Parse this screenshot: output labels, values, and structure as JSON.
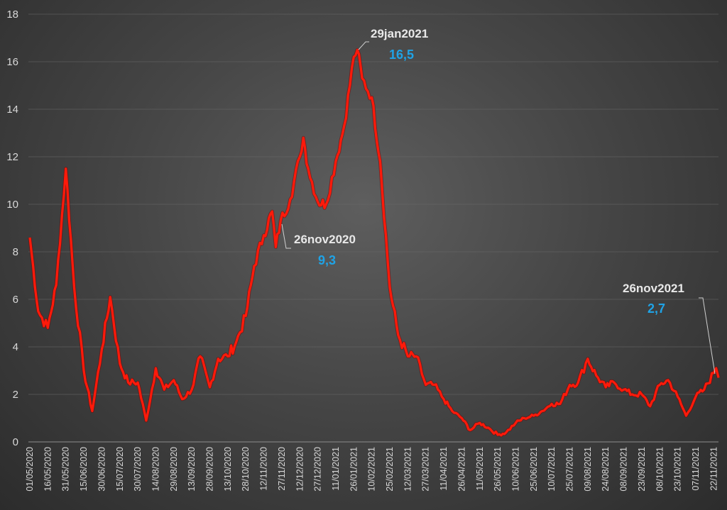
{
  "chart_data": {
    "type": "line",
    "title": "",
    "xlabel": "",
    "ylabel": "",
    "ylim": [
      0,
      18
    ],
    "yticks": [
      "0",
      "2",
      "4",
      "6",
      "8",
      "10",
      "12",
      "14",
      "16",
      "18"
    ],
    "grid": true,
    "legend": "none",
    "colors": {
      "line": "#ff1a0a",
      "annotation_value": "#1fa3e6",
      "annotation_date": "#e8e8e8",
      "grid": "#6a6a6a"
    },
    "xticks": [
      "01/05/2020",
      "16/05/2020",
      "31/05/2020",
      "15/06/2020",
      "30/06/2020",
      "15/07/2020",
      "30/07/2020",
      "14/08/2020",
      "29/08/2020",
      "13/09/2020",
      "28/09/2020",
      "13/10/2020",
      "28/10/2020",
      "12/11/2020",
      "27/11/2020",
      "12/12/2020",
      "27/12/2020",
      "11/01/2021",
      "26/01/2021",
      "10/02/2021",
      "25/02/2021",
      "12/03/2021",
      "27/03/2021",
      "11/04/2021",
      "26/04/2021",
      "11/05/2021",
      "26/05/2021",
      "10/06/2021",
      "25/06/2021",
      "10/07/2021",
      "25/07/2021",
      "09/08/2021",
      "24/08/2021",
      "08/09/2021",
      "23/09/2021",
      "08/10/2021",
      "23/10/2021",
      "07/11/2021",
      "22/11/2021"
    ],
    "series": [
      {
        "points": [
          [
            "01/05/2020",
            8.6
          ],
          [
            "08/05/2020",
            5.5
          ],
          [
            "16/05/2020",
            4.8
          ],
          [
            "23/05/2020",
            6.6
          ],
          [
            "31/05/2020",
            11.5
          ],
          [
            "07/06/2020",
            6.5
          ],
          [
            "15/06/2020",
            3.0
          ],
          [
            "22/06/2020",
            1.3
          ],
          [
            "30/06/2020",
            3.9
          ],
          [
            "07/07/2020",
            6.1
          ],
          [
            "15/07/2020",
            3.3
          ],
          [
            "22/07/2020",
            2.5
          ],
          [
            "30/07/2020",
            2.5
          ],
          [
            "06/08/2020",
            0.9
          ],
          [
            "14/08/2020",
            3.1
          ],
          [
            "21/08/2020",
            2.2
          ],
          [
            "29/08/2020",
            2.6
          ],
          [
            "05/09/2020",
            1.8
          ],
          [
            "13/09/2020",
            2.2
          ],
          [
            "20/09/2020",
            3.6
          ],
          [
            "28/09/2020",
            2.3
          ],
          [
            "05/10/2020",
            3.5
          ],
          [
            "13/10/2020",
            3.6
          ],
          [
            "20/10/2020",
            4.2
          ],
          [
            "28/10/2020",
            5.3
          ],
          [
            "04/11/2020",
            7.4
          ],
          [
            "12/11/2020",
            8.7
          ],
          [
            "19/11/2020",
            9.7
          ],
          [
            "22/11/2020",
            8.2
          ],
          [
            "26/11/2020",
            9.3
          ],
          [
            "04/12/2020",
            10.2
          ],
          [
            "12/12/2020",
            12.0
          ],
          [
            "15/12/2020",
            12.8
          ],
          [
            "19/12/2020",
            11.5
          ],
          [
            "27/12/2020",
            10.1
          ],
          [
            "03/01/2021",
            10.0
          ],
          [
            "11/01/2021",
            11.8
          ],
          [
            "18/01/2021",
            13.3
          ],
          [
            "26/01/2021",
            16.2
          ],
          [
            "29/01/2021",
            16.5
          ],
          [
            "02/02/2021",
            15.3
          ],
          [
            "10/02/2021",
            14.5
          ],
          [
            "17/02/2021",
            11.8
          ],
          [
            "25/02/2021",
            6.5
          ],
          [
            "04/03/2021",
            4.5
          ],
          [
            "12/03/2021",
            3.6
          ],
          [
            "19/03/2021",
            3.6
          ],
          [
            "27/03/2021",
            2.4
          ],
          [
            "03/04/2021",
            2.4
          ],
          [
            "11/04/2021",
            1.8
          ],
          [
            "18/04/2021",
            1.3
          ],
          [
            "26/04/2021",
            1.0
          ],
          [
            "03/05/2021",
            0.5
          ],
          [
            "11/05/2021",
            0.8
          ],
          [
            "18/05/2021",
            0.6
          ],
          [
            "26/05/2021",
            0.3
          ],
          [
            "02/06/2021",
            0.4
          ],
          [
            "10/06/2021",
            0.8
          ],
          [
            "17/06/2021",
            1.0
          ],
          [
            "25/06/2021",
            1.1
          ],
          [
            "02/07/2021",
            1.3
          ],
          [
            "10/07/2021",
            1.6
          ],
          [
            "17/07/2021",
            1.6
          ],
          [
            "25/07/2021",
            2.4
          ],
          [
            "01/08/2021",
            2.5
          ],
          [
            "09/08/2021",
            3.5
          ],
          [
            "16/08/2021",
            2.8
          ],
          [
            "24/08/2021",
            2.3
          ],
          [
            "31/08/2021",
            2.5
          ],
          [
            "08/09/2021",
            2.2
          ],
          [
            "15/09/2021",
            2.0
          ],
          [
            "23/09/2021",
            2.0
          ],
          [
            "30/09/2021",
            1.5
          ],
          [
            "08/10/2021",
            2.4
          ],
          [
            "15/10/2021",
            2.6
          ],
          [
            "23/10/2021",
            1.9
          ],
          [
            "30/10/2021",
            1.1
          ],
          [
            "07/11/2021",
            1.9
          ],
          [
            "14/11/2021",
            2.2
          ],
          [
            "22/11/2021",
            2.9
          ],
          [
            "24/11/2021",
            3.1
          ],
          [
            "26/11/2021",
            2.7
          ]
        ]
      }
    ],
    "annotations": [
      {
        "date_label": "29jan2021",
        "value_label": "16,5",
        "date": "29/01/2021",
        "value": 16.5
      },
      {
        "date_label": "26nov2020",
        "value_label": "9,3",
        "date": "26/11/2020",
        "value": 9.3
      },
      {
        "date_label": "26nov2021",
        "value_label": "2,7",
        "date": "26/11/2021",
        "value": 2.7
      }
    ]
  }
}
